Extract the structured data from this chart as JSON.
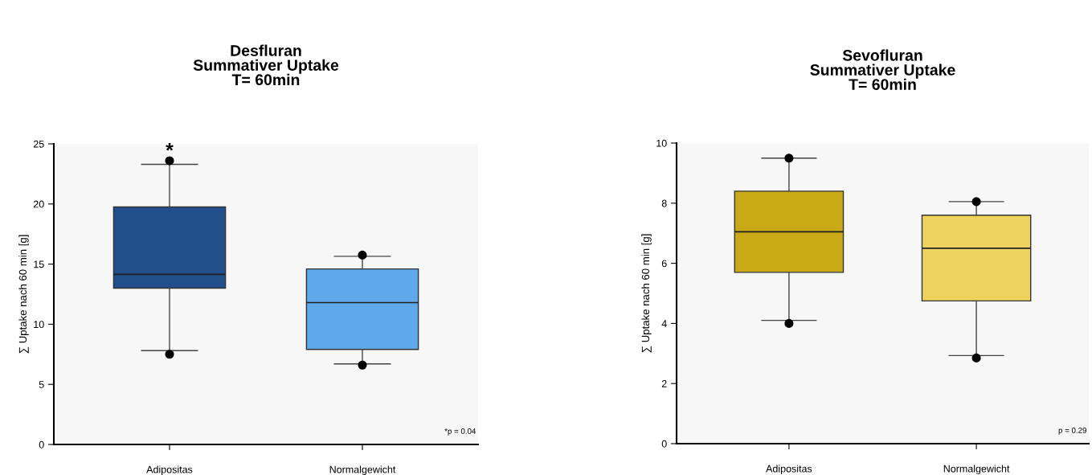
{
  "chart_data": [
    {
      "type": "box",
      "title": "Desfluran\nSummativer Uptake\nT= 60min",
      "ylabel": "∑ Uptake nach 60 min [g]",
      "categories": [
        "Adipositas",
        "Normalgewicht"
      ],
      "colors": [
        "#224f8c",
        "#5fa8ea"
      ],
      "ylim": [
        0,
        25
      ],
      "yticks": [
        0,
        5,
        10,
        15,
        20,
        25
      ],
      "grid": false,
      "legend": false,
      "boxes": [
        {
          "low": 7.8,
          "q1": 13.0,
          "median": 14.15,
          "q3": 19.75,
          "high": 23.3,
          "outliers": [
            7.5,
            23.6
          ]
        },
        {
          "low": 6.7,
          "q1": 7.9,
          "median": 11.8,
          "q3": 14.6,
          "high": 15.65,
          "outliers": [
            6.6,
            15.75
          ]
        }
      ],
      "annotations": [
        "*",
        "*p = 0.04"
      ]
    },
    {
      "type": "box",
      "title": "Sevofluran\nSummativer Uptake\nT= 60min",
      "ylabel": "∑ Uptake nach 60 min [g]",
      "categories": [
        "Adipositas",
        "Normalgewicht"
      ],
      "colors": [
        "#c9aa16",
        "#edd35e"
      ],
      "ylim": [
        0,
        10
      ],
      "yticks": [
        0,
        2,
        4,
        6,
        8,
        10
      ],
      "grid": false,
      "legend": false,
      "boxes": [
        {
          "low": 4.1,
          "q1": 5.7,
          "median": 7.05,
          "q3": 8.4,
          "high": 9.5,
          "outliers": [
            4.0,
            9.5
          ]
        },
        {
          "low": 2.93,
          "q1": 4.75,
          "median": 6.5,
          "q3": 7.6,
          "high": 8.05,
          "outliers": [
            2.85,
            8.05
          ]
        }
      ],
      "annotations": [
        "p = 0.29"
      ]
    }
  ]
}
